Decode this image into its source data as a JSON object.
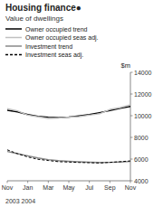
{
  "chart_data": {
    "type": "line",
    "title": "Housing finance●",
    "subtitle": "Value of dwellings",
    "ylabel": "$m",
    "xlabel": "2003 2004",
    "categories": [
      "Nov",
      null,
      "Jan",
      null,
      "Mar",
      null,
      "May",
      null,
      "Jul",
      null,
      "Sep",
      null,
      "Nov"
    ],
    "series": [
      {
        "name": "Owner occupied trend",
        "color": "#000000",
        "line_style": "solid",
        "values": [
          10500,
          10350,
          10100,
          9950,
          9850,
          9820,
          9870,
          9980,
          10100,
          10280,
          10480,
          10680,
          10850
        ]
      },
      {
        "name": "Owner occupied seas adj.",
        "color": "#c0c0c0",
        "line_style": "solid",
        "values": [
          10650,
          10450,
          10050,
          9900,
          9750,
          9780,
          9870,
          9920,
          10050,
          10180,
          10580,
          10750,
          11000
        ]
      },
      {
        "name": "Investment trend",
        "color": "#888888",
        "line_style": "solid",
        "values": [
          6700,
          6500,
          6300,
          6100,
          5950,
          5850,
          5790,
          5750,
          5710,
          5690,
          5700,
          5730,
          5780
        ]
      },
      {
        "name": "Investment seas adj.",
        "color": "#000000",
        "line_style": "dashed",
        "values": [
          6850,
          6500,
          6200,
          5980,
          5870,
          5760,
          5730,
          5690,
          5670,
          5640,
          5700,
          5760,
          5830
        ]
      }
    ],
    "ylim": [
      4000,
      14000
    ],
    "yticks": [
      4000,
      6000,
      8000,
      10000,
      12000,
      14000
    ],
    "grid": false,
    "legend": "upper left"
  }
}
